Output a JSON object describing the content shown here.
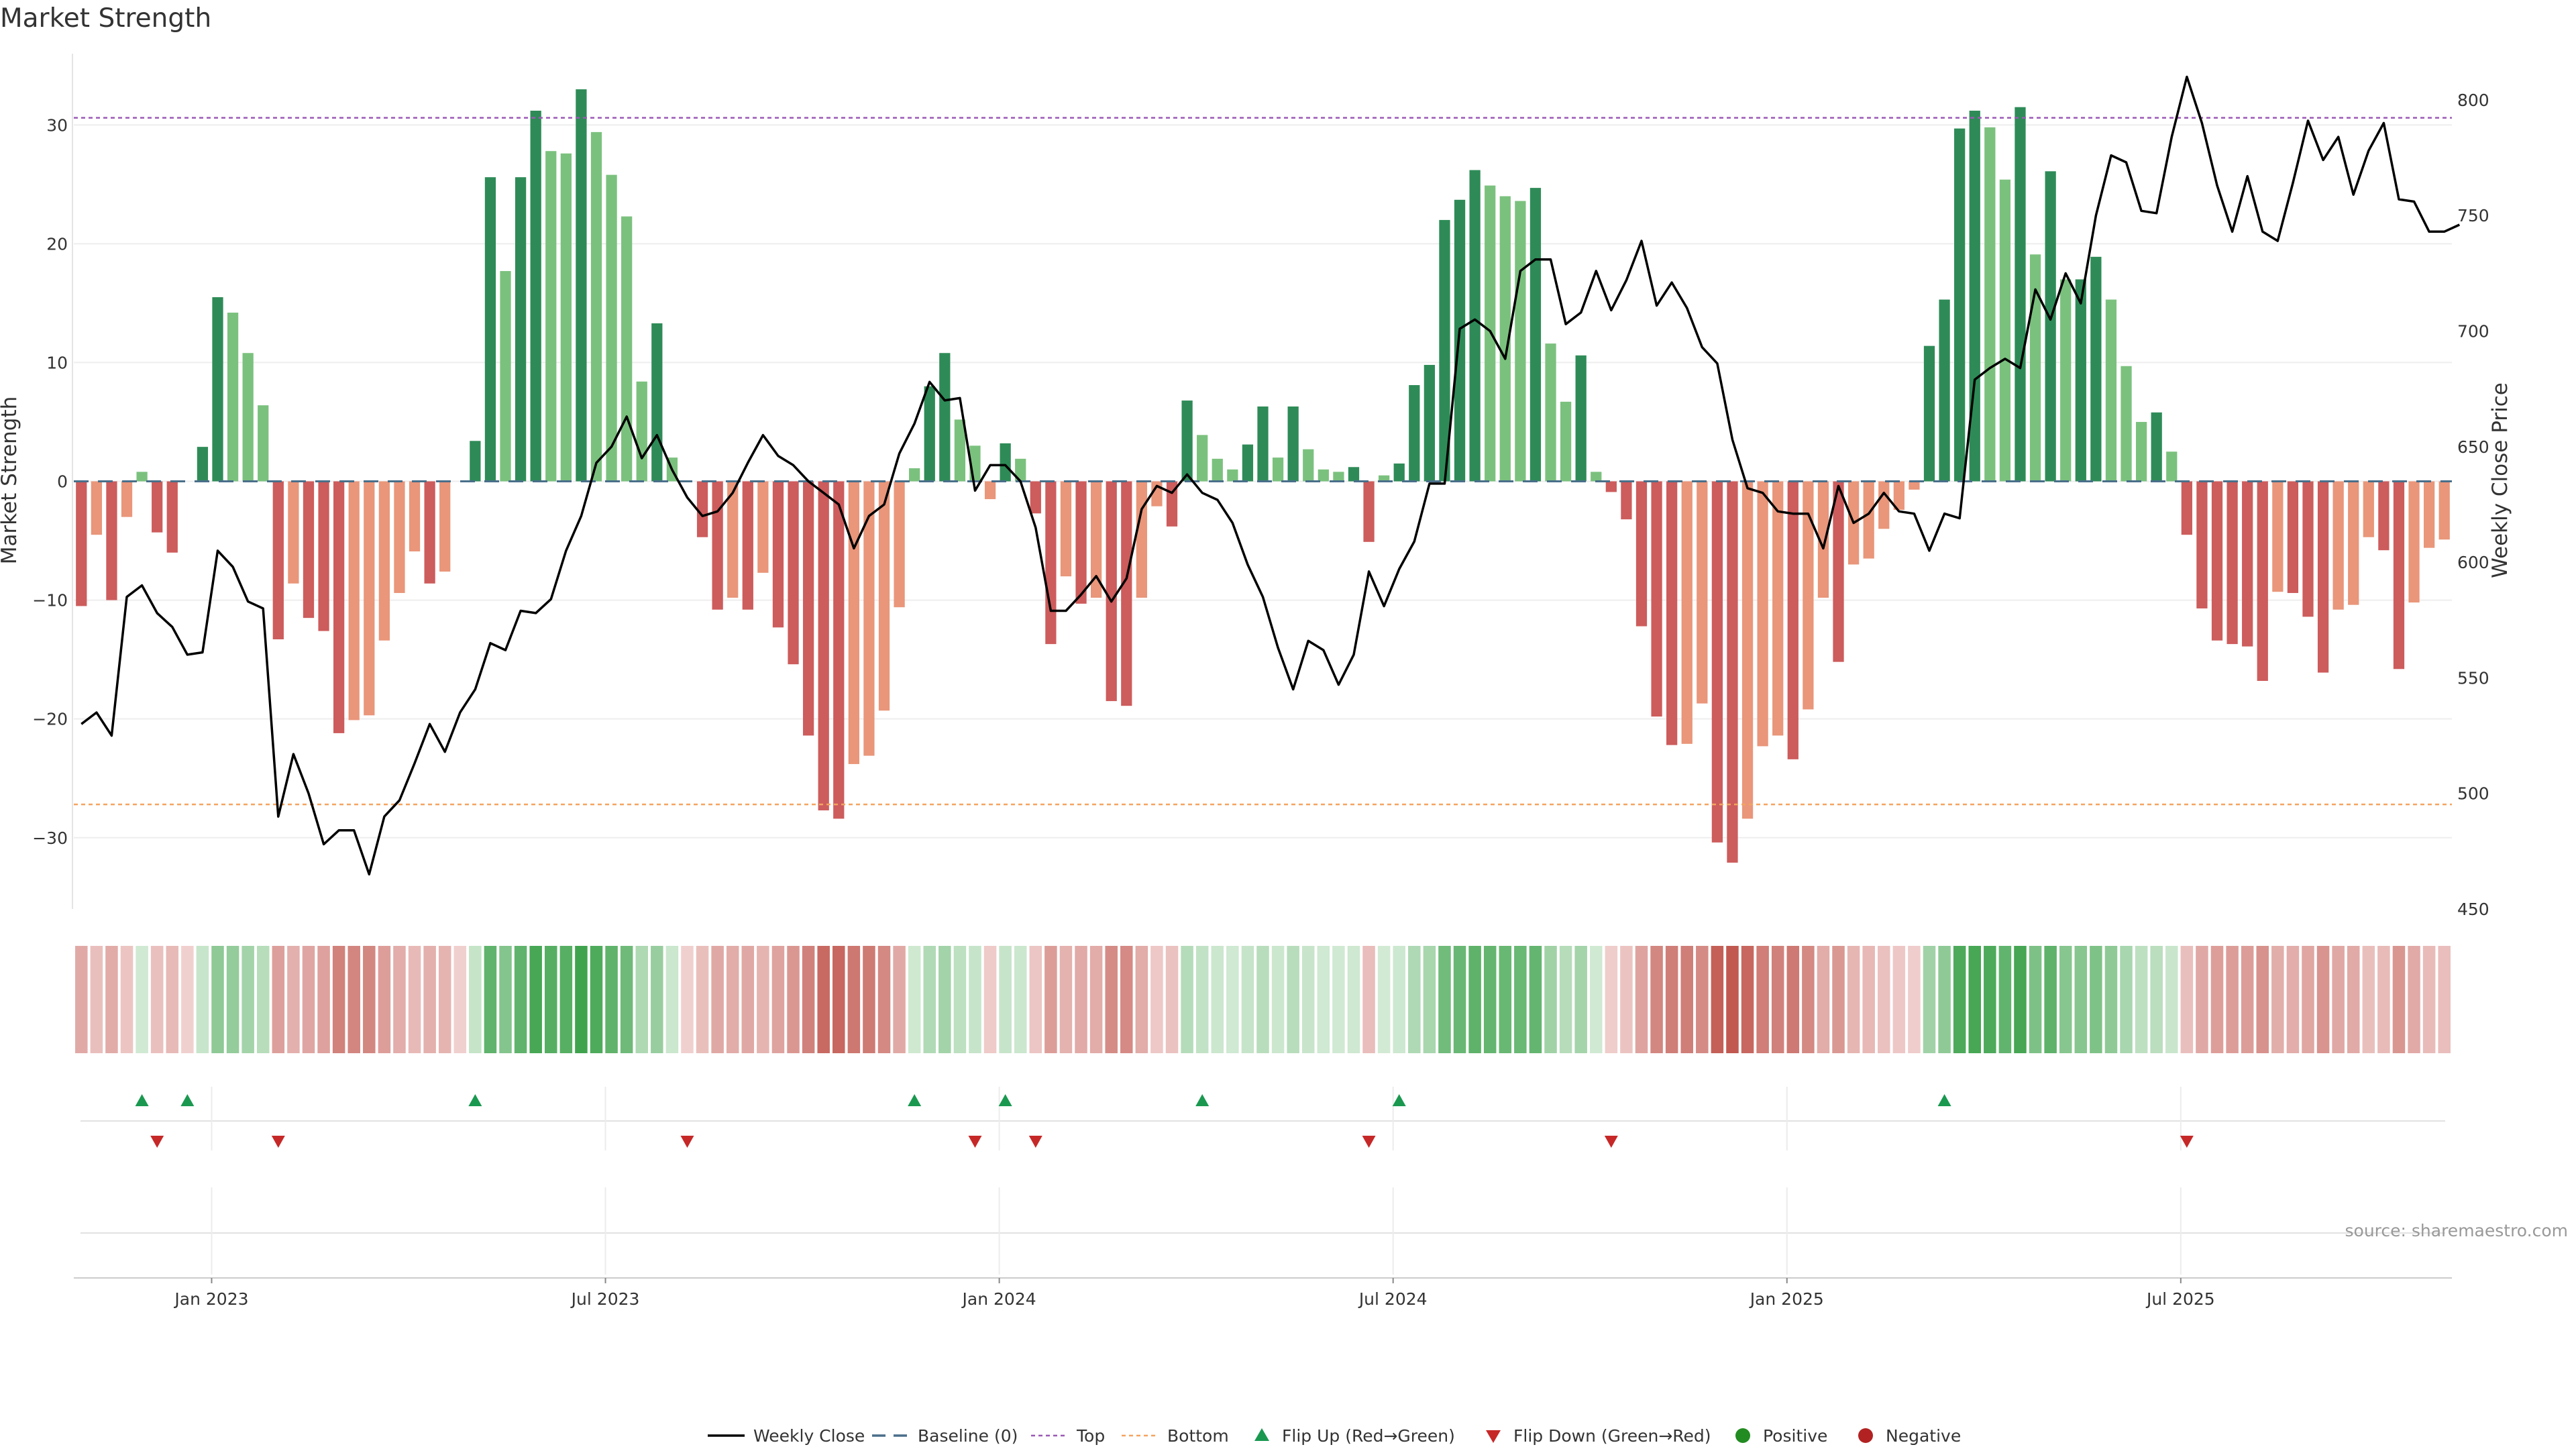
{
  "title": "Market Strength",
  "source": "source: sharemaestro.com",
  "colors": {
    "strong_green": "#2e8b57",
    "light_green": "#7bc17e",
    "strong_red": "#cd5c5c",
    "light_red": "#e9967a",
    "top_line": "#9b59b6",
    "bottom_line": "#f4a460",
    "baseline": "#4a6f8a",
    "price_line": "#000000",
    "flip_up": "#1a9850",
    "flip_down": "#c62828",
    "positive": "#228b22",
    "negative": "#b22222"
  },
  "chart_data": {
    "type": "bar",
    "ylabel": "Market Strength",
    "ylabel_right": "Weekly Close Price",
    "ylim": [
      -36,
      36
    ],
    "ylim_right": [
      450,
      820
    ],
    "yticks": [
      30,
      20,
      10,
      0,
      -10,
      -20,
      -30
    ],
    "yticks_right": [
      800,
      750,
      700,
      650,
      600,
      550,
      500,
      450
    ],
    "xticks": [
      "Jan 2023",
      "Jul 2023",
      "Jan 2024",
      "Jul 2024",
      "Jan 2025",
      "Jul 2025"
    ],
    "xtick_index": [
      9,
      35,
      61,
      87,
      113,
      139
    ],
    "top_level": 30.6,
    "bottom_level": -27.2,
    "baseline_level": 0,
    "strength": [
      -10.5,
      -4.5,
      -10,
      -3,
      0.8,
      -4.3,
      -6,
      0,
      2.9,
      15.5,
      14.2,
      10.8,
      6.4,
      -13.3,
      -8.6,
      -11.5,
      -12.6,
      -21.2,
      -20.1,
      -19.7,
      -13.4,
      -9.4,
      -5.9,
      -8.6,
      -7.6,
      0,
      3.4,
      25.6,
      17.7,
      25.6,
      31.2,
      27.8,
      27.6,
      33,
      29.4,
      25.8,
      22.3,
      8.4,
      13.3,
      2,
      0,
      -4.7,
      -10.8,
      -9.8,
      -10.8,
      -7.7,
      -12.3,
      -15.4,
      -21.4,
      -27.7,
      -28.4,
      -23.8,
      -23.1,
      -19.3,
      -10.6,
      1.1,
      8,
      10.8,
      5.2,
      3,
      -1.5,
      3.2,
      1.9,
      -2.7,
      -13.7,
      -8,
      -10.3,
      -9.8,
      -18.5,
      -18.9,
      -9.8,
      -2.1,
      -3.8,
      6.8,
      3.9,
      1.9,
      1,
      3.1,
      6.3,
      2,
      6.3,
      2.7,
      1,
      0.8,
      1.2,
      -5.1,
      0.5,
      1.5,
      8.1,
      9.8,
      22,
      23.7,
      26.2,
      24.9,
      24,
      23.6,
      24.7,
      11.6,
      6.7,
      10.6,
      0.8,
      -0.9,
      -3.2,
      -12.2,
      -19.8,
      -22.2,
      -22.1,
      -18.7,
      -30.4,
      -32.1,
      -28.4,
      -22.3,
      -21.4,
      -23.4,
      -19.2,
      -9.8,
      -15.2,
      -7,
      -6.5,
      -4,
      -2.4,
      -0.7,
      11.4,
      15.3,
      29.7,
      31.2,
      29.8,
      25.4,
      31.5,
      19.1,
      26.1,
      17,
      17,
      18.9,
      15.3,
      9.7,
      5,
      5.8,
      2.5,
      -4.5,
      -10.7,
      -13.4,
      -13.7,
      -13.9,
      -16.8,
      -9.3,
      -9.4,
      -11.4,
      -16.1,
      -10.8,
      -10.4,
      -4.7,
      -5.8,
      -15.8,
      -10.2,
      -5.6,
      -4.9
    ],
    "weekly_close": [
      530,
      535,
      525,
      585,
      590,
      578,
      572,
      560,
      561,
      605,
      598,
      583,
      580,
      490,
      517,
      500,
      478,
      484,
      484,
      465,
      490,
      497,
      513,
      530,
      518,
      535,
      545,
      565,
      562,
      579,
      578,
      584,
      605,
      620,
      643,
      650,
      663,
      645,
      655,
      640,
      628,
      620,
      622,
      630,
      643,
      655,
      646,
      642,
      635,
      630,
      625,
      606,
      620,
      625,
      647,
      660,
      678,
      670,
      671,
      631,
      642,
      642,
      635,
      615,
      579,
      579,
      586,
      594,
      583,
      593,
      623,
      633,
      630,
      638,
      630,
      627,
      617,
      599,
      585,
      563,
      545,
      566,
      562,
      547,
      560,
      596,
      581,
      597,
      609,
      634,
      634,
      701,
      705,
      700,
      688,
      726,
      731,
      731,
      703,
      708,
      726,
      709,
      722,
      739,
      711,
      721,
      710,
      693,
      686,
      653,
      632,
      630,
      622,
      621,
      621,
      606,
      633,
      617,
      621,
      630,
      622,
      621,
      605,
      621,
      619,
      679,
      684,
      688,
      684,
      718,
      705,
      725,
      712,
      750,
      776,
      773,
      752,
      751,
      784,
      810,
      790,
      763,
      743,
      767,
      743,
      739,
      764,
      791,
      774,
      784,
      759,
      778,
      790,
      757,
      756,
      743,
      743,
      746
    ],
    "flip_up_index": [
      4,
      7,
      26,
      55,
      61,
      74,
      87,
      123
    ],
    "flip_down_index": [
      5,
      13,
      40,
      59,
      63,
      85,
      101,
      139
    ],
    "legend": [
      "Weekly Close",
      "Baseline (0)",
      "Top",
      "Bottom",
      "Flip Up (Red→Green)",
      "Flip Down (Green→Red)",
      "Positive",
      "Negative"
    ]
  }
}
